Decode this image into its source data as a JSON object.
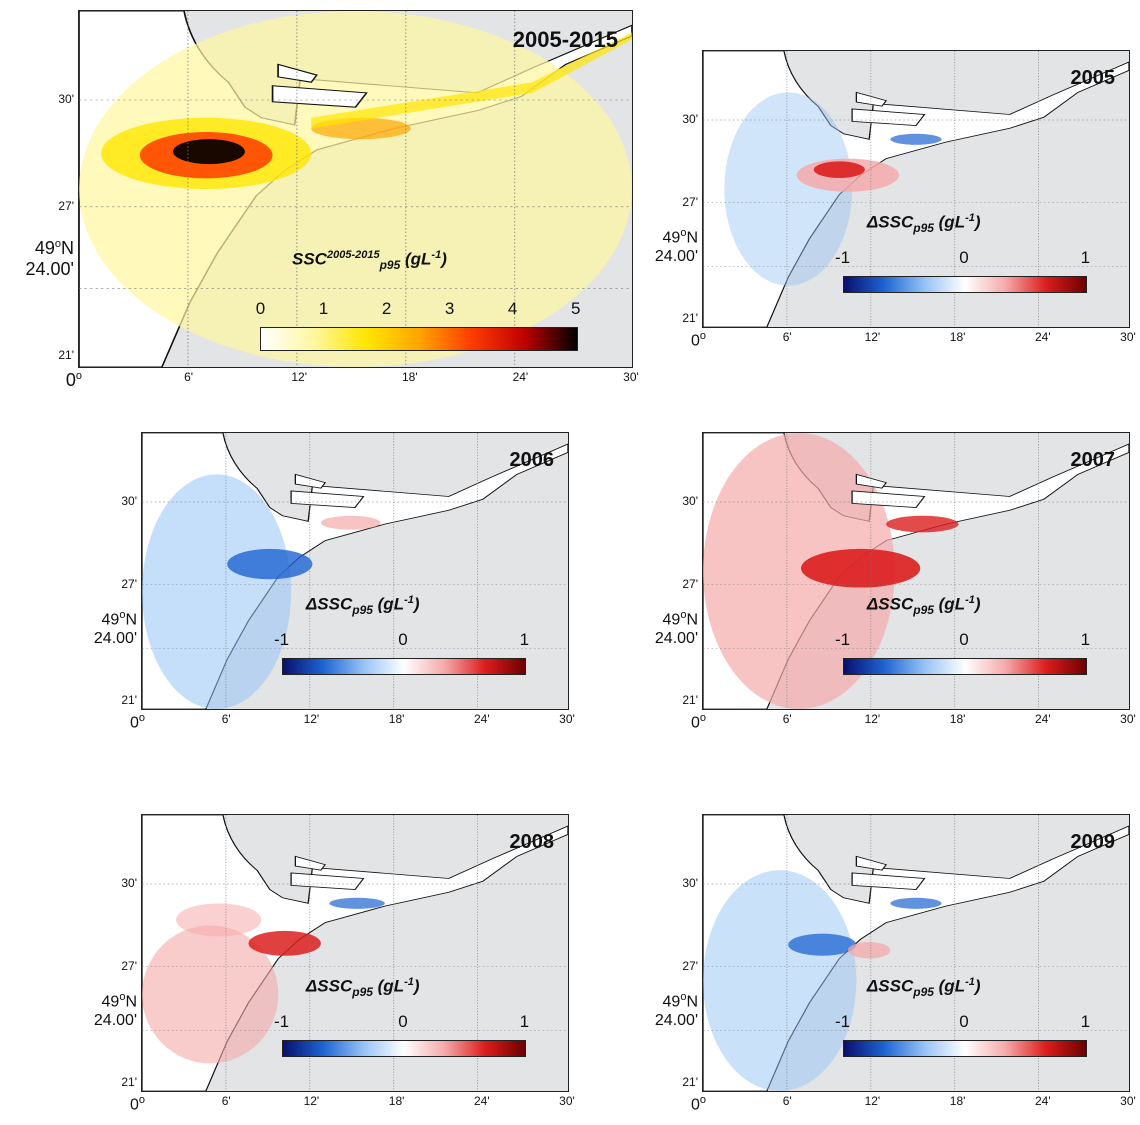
{
  "figure": {
    "lat_label": "49",
    "lat_deg": "o",
    "lat_hemi": "N",
    "lat_sub": "24.00'",
    "origin": "0",
    "origin_deg": "o",
    "y_ticks": [
      "30'",
      "27'",
      "21'"
    ],
    "x_ticks": [
      "6'",
      "12'",
      "18'",
      "24'",
      "30'"
    ]
  },
  "panels": [
    {
      "year": "2005-2015",
      "cbar_title": "SSC",
      "cbar_title_sup": "2005-2015",
      "cbar_title_sub": "p95",
      "cbar_units": "(gL",
      "cbar_units_sup": "-1",
      "cbar_units_end": ")",
      "cbar_ticks": [
        "0",
        "1",
        "2",
        "3",
        "4",
        "5"
      ],
      "cbar_scale": "sequential"
    },
    {
      "year": "2005",
      "cbar_title": "ΔSSC",
      "cbar_title_sup": "",
      "cbar_title_sub": "p95",
      "cbar_units": "(gL",
      "cbar_units_sup": "-1",
      "cbar_units_end": ")",
      "cbar_ticks": [
        "-1",
        "0",
        "1"
      ],
      "cbar_scale": "diverging"
    },
    {
      "year": "2006",
      "cbar_title": "ΔSSC",
      "cbar_title_sup": "",
      "cbar_title_sub": "p95",
      "cbar_units": "(gL",
      "cbar_units_sup": "-1",
      "cbar_units_end": ")",
      "cbar_ticks": [
        "-1",
        "0",
        "1"
      ],
      "cbar_scale": "diverging"
    },
    {
      "year": "2007",
      "cbar_title": "ΔSSC",
      "cbar_title_sup": "",
      "cbar_title_sub": "p95",
      "cbar_units": "(gL",
      "cbar_units_sup": "-1",
      "cbar_units_end": ")",
      "cbar_ticks": [
        "-1",
        "0",
        "1"
      ],
      "cbar_scale": "diverging"
    },
    {
      "year": "2008",
      "cbar_title": "ΔSSC",
      "cbar_title_sup": "",
      "cbar_title_sub": "p95",
      "cbar_units": "(gL",
      "cbar_units_sup": "-1",
      "cbar_units_end": ")",
      "cbar_ticks": [
        "-1",
        "0",
        "1"
      ],
      "cbar_scale": "diverging"
    },
    {
      "year": "2009",
      "cbar_title": "ΔSSC",
      "cbar_title_sup": "",
      "cbar_title_sub": "p95",
      "cbar_units": "(gL",
      "cbar_units_sup": "-1",
      "cbar_units_end": ")",
      "cbar_ticks": [
        "-1",
        "0",
        "1"
      ],
      "cbar_scale": "diverging"
    }
  ],
  "colors": {
    "land": "#e2e4e6",
    "sequential": [
      "#ffffff",
      "#fff7a0",
      "#ffe600",
      "#ffa500",
      "#ff3c00",
      "#c00000",
      "#000000"
    ],
    "diverging": [
      "#08106e",
      "#1e64d2",
      "#96c3f5",
      "#ffffff",
      "#f5aaaa",
      "#dc1e1e",
      "#6e0000"
    ]
  }
}
